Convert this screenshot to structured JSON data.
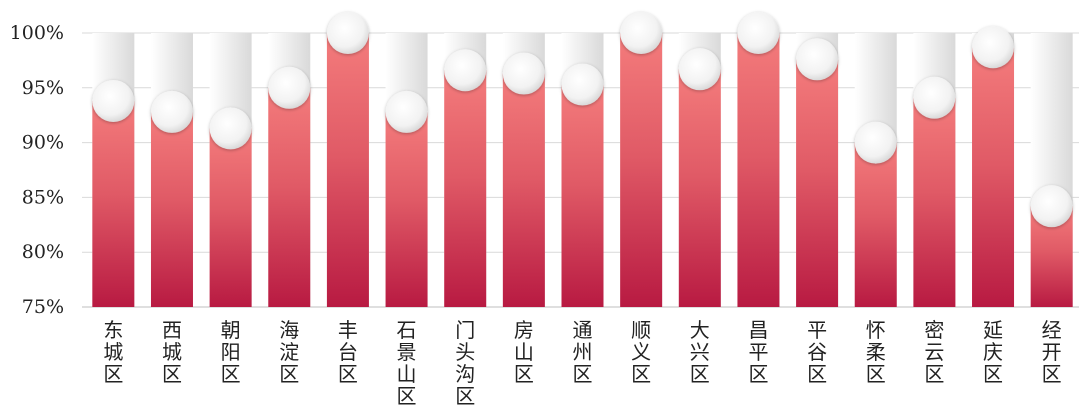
{
  "chart_data": {
    "type": "bar",
    "categories": [
      "东城区",
      "西城区",
      "朝阳区",
      "海淀区",
      "丰台区",
      "石景山区",
      "门头沟区",
      "房山区",
      "通州区",
      "顺义区",
      "大兴区",
      "昌平区",
      "平谷区",
      "怀柔区",
      "密云区",
      "延庆区",
      "经开区"
    ],
    "values": [
      93.8,
      92.8,
      91.3,
      95.0,
      100.0,
      92.8,
      96.6,
      96.3,
      95.3,
      100.0,
      96.7,
      100.0,
      97.6,
      90.0,
      94.1,
      98.7,
      84.2
    ],
    "ylim": [
      75,
      100
    ],
    "yticks": [
      "75%",
      "80%",
      "85%",
      "90%",
      "95%",
      "100%"
    ],
    "ytick_values": [
      75,
      80,
      85,
      90,
      95,
      100
    ],
    "grid": true,
    "colors": {
      "bar_top": "#f47c7c",
      "bar_mid": "#e05a66",
      "bar_bottom": "#b81a42",
      "track_light": "#ffffff",
      "track_dark": "#d9d9d9",
      "grid": "#d9d9d9",
      "axis": "#bfbfbf"
    }
  }
}
